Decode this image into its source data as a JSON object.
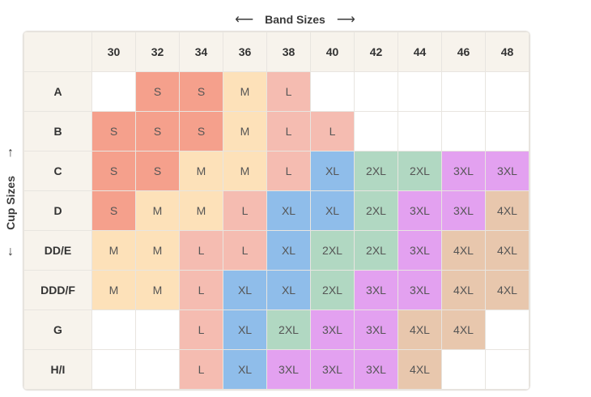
{
  "band_header": {
    "left_arrow": "⟵",
    "label": "Band Sizes",
    "right_arrow": "⟶"
  },
  "cup_header": {
    "up_arrow": "↑",
    "label": "Cup Sizes",
    "down_arrow": "↓"
  },
  "bands": [
    "30",
    "32",
    "34",
    "36",
    "38",
    "40",
    "42",
    "44",
    "46",
    "48"
  ],
  "rows": [
    {
      "cup": "A",
      "sizes": [
        "",
        "S",
        "S",
        "M",
        "L",
        "",
        "",
        "",
        "",
        ""
      ]
    },
    {
      "cup": "B",
      "sizes": [
        "S",
        "S",
        "S",
        "M",
        "L",
        "L",
        "",
        "",
        "",
        ""
      ]
    },
    {
      "cup": "C",
      "sizes": [
        "S",
        "S",
        "M",
        "M",
        "L",
        "XL",
        "2XL",
        "2XL",
        "3XL",
        "3XL"
      ]
    },
    {
      "cup": "D",
      "sizes": [
        "S",
        "M",
        "M",
        "L",
        "XL",
        "XL",
        "2XL",
        "3XL",
        "3XL",
        "4XL"
      ]
    },
    {
      "cup": "DD/E",
      "sizes": [
        "M",
        "M",
        "L",
        "L",
        "XL",
        "2XL",
        "2XL",
        "3XL",
        "4XL",
        "4XL"
      ]
    },
    {
      "cup": "DDD/F",
      "sizes": [
        "M",
        "M",
        "L",
        "XL",
        "XL",
        "2XL",
        "3XL",
        "3XL",
        "4XL",
        "4XL"
      ]
    },
    {
      "cup": "G",
      "sizes": [
        "",
        "",
        "L",
        "XL",
        "2XL",
        "3XL",
        "3XL",
        "4XL",
        "4XL",
        ""
      ]
    },
    {
      "cup": "H/I",
      "sizes": [
        "",
        "",
        "L",
        "XL",
        "3XL",
        "3XL",
        "3XL",
        "4XL",
        "",
        ""
      ]
    }
  ],
  "size_colors": {
    "S": "#f5a08c",
    "M": "#fde1b9",
    "L": "#f5bcb1",
    "XL": "#8fbdea",
    "2XL": "#b1d8c2",
    "3XL": "#e3a1f0",
    "4XL": "#e8c7ad"
  }
}
